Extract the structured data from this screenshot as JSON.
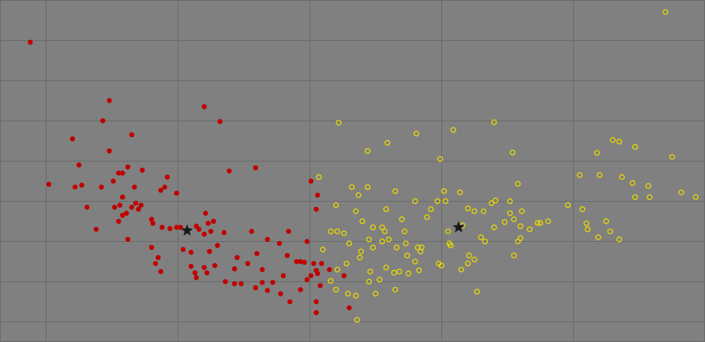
{
  "chart_data": {
    "type": "scatter",
    "title": "",
    "xlabel": "",
    "ylabel": "",
    "grid": true,
    "xlim": [
      -0.35,
      5.0
    ],
    "ylim": [
      0,
      8.5
    ],
    "xgrid": [
      0,
      1,
      2,
      3,
      4
    ],
    "ygrid": [
      0.5,
      1.5,
      2.5,
      3.5,
      4.5,
      5.5,
      6.5,
      7.5
    ],
    "series": [
      {
        "color": "#c00000",
        "marker": "dot",
        "points": [
          [
            -0.12,
            7.45
          ],
          [
            0.48,
            6.0
          ],
          [
            0.43,
            5.5
          ],
          [
            0.65,
            5.15
          ],
          [
            0.2,
            5.05
          ],
          [
            1.2,
            5.85
          ],
          [
            1.32,
            5.48
          ],
          [
            0.25,
            4.4
          ],
          [
            0.48,
            4.75
          ],
          [
            0.62,
            4.35
          ],
          [
            0.58,
            4.2
          ],
          [
            0.55,
            4.2
          ],
          [
            0.73,
            4.27
          ],
          [
            0.92,
            4.1
          ],
          [
            0.02,
            3.92
          ],
          [
            0.27,
            3.9
          ],
          [
            0.22,
            3.85
          ],
          [
            0.42,
            3.85
          ],
          [
            0.51,
            4.0
          ],
          [
            0.67,
            3.85
          ],
          [
            0.87,
            3.77
          ],
          [
            0.9,
            3.85
          ],
          [
            0.99,
            3.7
          ],
          [
            0.58,
            3.6
          ],
          [
            0.68,
            3.45
          ],
          [
            0.52,
            3.35
          ],
          [
            0.56,
            3.4
          ],
          [
            0.65,
            3.35
          ],
          [
            0.72,
            3.4
          ],
          [
            0.7,
            3.3
          ],
          [
            0.31,
            3.35
          ],
          [
            0.58,
            3.15
          ],
          [
            0.8,
            3.05
          ],
          [
            0.61,
            3.2
          ],
          [
            0.55,
            3.0
          ],
          [
            0.38,
            2.8
          ],
          [
            1.21,
            3.2
          ],
          [
            1.27,
            3.0
          ],
          [
            0.81,
            2.95
          ],
          [
            0.88,
            2.85
          ],
          [
            0.94,
            2.82
          ],
          [
            0.99,
            2.85
          ],
          [
            1.14,
            2.88
          ],
          [
            1.16,
            2.8
          ],
          [
            1.25,
            2.75
          ],
          [
            1.35,
            2.72
          ],
          [
            1.2,
            2.68
          ],
          [
            1.23,
            2.95
          ],
          [
            1.39,
            4.25
          ],
          [
            1.59,
            4.33
          ],
          [
            0.62,
            2.55
          ],
          [
            1.02,
            2.85
          ],
          [
            0.8,
            2.35
          ],
          [
            1.04,
            2.3
          ],
          [
            1.1,
            2.23
          ],
          [
            1.24,
            2.25
          ],
          [
            1.3,
            2.4
          ],
          [
            1.45,
            2.1
          ],
          [
            1.68,
            2.55
          ],
          [
            1.77,
            2.45
          ],
          [
            1.56,
            2.75
          ],
          [
            1.84,
            2.75
          ],
          [
            1.6,
            2.2
          ],
          [
            1.83,
            2.15
          ],
          [
            1.9,
            2.0
          ],
          [
            1.96,
            1.98
          ],
          [
            2.03,
            1.95
          ],
          [
            2.05,
            1.78
          ],
          [
            0.85,
            2.1
          ],
          [
            0.83,
            1.95
          ],
          [
            0.87,
            1.75
          ],
          [
            1.1,
            1.88
          ],
          [
            1.2,
            1.85
          ],
          [
            1.28,
            1.9
          ],
          [
            1.22,
            1.72
          ],
          [
            1.13,
            1.72
          ],
          [
            1.14,
            1.6
          ],
          [
            1.43,
            1.82
          ],
          [
            1.53,
            1.95
          ],
          [
            1.64,
            1.8
          ],
          [
            1.36,
            1.5
          ],
          [
            1.43,
            1.45
          ],
          [
            1.64,
            1.48
          ],
          [
            1.72,
            1.48
          ],
          [
            1.78,
            1.2
          ],
          [
            1.68,
            1.28
          ],
          [
            1.59,
            1.35
          ],
          [
            1.48,
            1.45
          ],
          [
            1.8,
            1.65
          ],
          [
            1.93,
            1.3
          ],
          [
            1.85,
            1.0
          ],
          [
            1.98,
            1.55
          ],
          [
            2.06,
            1.7
          ],
          [
            2.01,
            1.65
          ],
          [
            2.09,
            1.95
          ],
          [
            2.26,
            1.65
          ],
          [
            2.15,
            1.8
          ],
          [
            2.08,
            1.4
          ],
          [
            2.3,
            0.85
          ],
          [
            2.05,
            1.0
          ],
          [
            1.93,
            2.0
          ],
          [
            1.98,
            2.5
          ],
          [
            2.01,
            4.0
          ],
          [
            2.06,
            3.65
          ],
          [
            2.05,
            3.3
          ],
          [
            2.05,
            0.73
          ]
        ]
      },
      {
        "color": "#e8d800",
        "marker": "ring",
        "points": [
          [
            4.7,
            8.2
          ],
          [
            4.75,
            4.6
          ],
          [
            4.47,
            4.85
          ],
          [
            4.3,
            5.02
          ],
          [
            4.35,
            4.98
          ],
          [
            4.18,
            4.7
          ],
          [
            4.37,
            4.1
          ],
          [
            4.45,
            3.95
          ],
          [
            4.57,
            3.88
          ],
          [
            4.2,
            4.15
          ],
          [
            4.05,
            4.15
          ],
          [
            4.47,
            3.6
          ],
          [
            4.58,
            3.6
          ],
          [
            4.82,
            3.72
          ],
          [
            4.93,
            3.6
          ],
          [
            3.4,
            5.46
          ],
          [
            3.54,
            4.71
          ],
          [
            3.58,
            3.93
          ],
          [
            3.52,
            3.5
          ],
          [
            3.38,
            3.45
          ],
          [
            3.32,
            3.25
          ],
          [
            3.14,
            3.72
          ],
          [
            3.25,
            3.25
          ],
          [
            3.2,
            3.32
          ],
          [
            3.41,
            3.52
          ],
          [
            3.52,
            3.2
          ],
          [
            3.48,
            2.98
          ],
          [
            3.61,
            3.25
          ],
          [
            3.55,
            3.05
          ],
          [
            3.6,
            2.88
          ],
          [
            3.73,
            2.96
          ],
          [
            3.67,
            2.8
          ],
          [
            3.75,
            2.96
          ],
          [
            3.81,
            3.0
          ],
          [
            3.4,
            2.85
          ],
          [
            3.33,
            2.5
          ],
          [
            3.6,
            2.58
          ],
          [
            3.96,
            3.4
          ],
          [
            4.07,
            3.3
          ],
          [
            4.11,
            2.8
          ],
          [
            4.1,
            2.95
          ],
          [
            4.19,
            2.6
          ],
          [
            4.35,
            2.55
          ],
          [
            4.25,
            3.0
          ],
          [
            4.28,
            2.75
          ],
          [
            3.2,
            1.95
          ],
          [
            3.15,
            1.8
          ],
          [
            3.25,
            2.05
          ],
          [
            3.55,
            2.15
          ],
          [
            3.58,
            2.5
          ],
          [
            3.07,
            2.4
          ],
          [
            3.27,
            1.25
          ],
          [
            2.22,
            5.45
          ],
          [
            2.59,
            4.95
          ],
          [
            2.81,
            5.18
          ],
          [
            2.99,
            4.55
          ],
          [
            3.09,
            5.27
          ],
          [
            2.44,
            4.75
          ],
          [
            2.07,
            4.1
          ],
          [
            2.32,
            3.85
          ],
          [
            2.37,
            3.65
          ],
          [
            2.44,
            3.85
          ],
          [
            2.65,
            3.75
          ],
          [
            2.8,
            3.5
          ],
          [
            2.97,
            3.5
          ],
          [
            3.03,
            3.5
          ],
          [
            3.02,
            3.75
          ],
          [
            2.58,
            3.3
          ],
          [
            2.35,
            3.25
          ],
          [
            2.2,
            3.4
          ],
          [
            2.7,
            3.05
          ],
          [
            2.89,
            3.1
          ],
          [
            2.92,
            3.3
          ],
          [
            2.4,
            3.0
          ],
          [
            2.48,
            2.85
          ],
          [
            2.57,
            2.75
          ],
          [
            2.72,
            2.75
          ],
          [
            2.55,
            2.5
          ],
          [
            2.3,
            2.45
          ],
          [
            2.26,
            2.7
          ],
          [
            2.16,
            2.75
          ],
          [
            2.21,
            2.75
          ],
          [
            2.45,
            2.55
          ],
          [
            2.6,
            2.55
          ],
          [
            2.84,
            2.25
          ],
          [
            2.48,
            2.35
          ],
          [
            2.66,
            2.35
          ],
          [
            2.85,
            2.35
          ],
          [
            2.73,
            2.45
          ],
          [
            2.74,
            2.15
          ],
          [
            2.38,
            2.1
          ],
          [
            2.8,
            2.0
          ],
          [
            2.98,
            1.95
          ],
          [
            3.0,
            1.9
          ],
          [
            2.28,
            1.95
          ],
          [
            2.64,
            1.72
          ],
          [
            2.68,
            1.75
          ],
          [
            2.58,
            1.85
          ],
          [
            2.46,
            1.75
          ],
          [
            3.06,
            2.45
          ],
          [
            2.82,
            2.35
          ],
          [
            3.21,
            2.15
          ],
          [
            3.05,
            2.75
          ],
          [
            3.16,
            2.9
          ],
          [
            3.3,
            2.6
          ],
          [
            2.53,
            1.55
          ],
          [
            2.83,
            1.78
          ],
          [
            2.45,
            1.5
          ],
          [
            2.16,
            1.52
          ],
          [
            2.2,
            1.3
          ],
          [
            2.35,
            1.15
          ],
          [
            2.29,
            1.2
          ],
          [
            2.75,
            1.7
          ],
          [
            2.5,
            1.2
          ],
          [
            2.36,
            0.55
          ],
          [
            2.1,
            2.3
          ],
          [
            2.39,
            2.25
          ],
          [
            2.55,
            2.85
          ],
          [
            2.21,
            1.8
          ],
          [
            2.65,
            1.3
          ]
        ]
      }
    ],
    "centroids": [
      {
        "x": 1.07,
        "y": 2.77,
        "marker": "star",
        "color": "#1a1a1a"
      },
      {
        "x": 3.13,
        "y": 2.85,
        "marker": "star",
        "color": "#1a1a1a"
      }
    ]
  }
}
